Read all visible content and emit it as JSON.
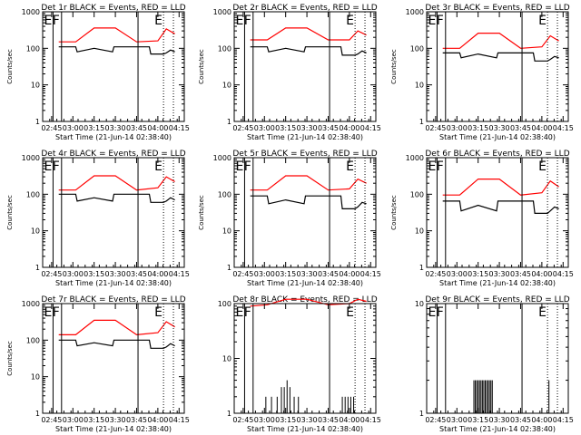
{
  "chart_data": [
    {
      "type": "line",
      "title": "Det 1r BLACK = Events, RED = LLD",
      "xlabel": "Start Time (21-Jun-14 02:38:40)",
      "ylabel": "Counts/sec",
      "yscale": "log",
      "ylim": [
        1,
        1000
      ],
      "xticks": [
        "02:45",
        "03:00",
        "03:15",
        "03:30",
        "03:45",
        "04:00",
        "04:15"
      ],
      "markers": [
        {
          "time": "02:46",
          "label": "E",
          "style": "solid"
        },
        {
          "time": "02:52",
          "label": "F",
          "style": "solid"
        },
        {
          "time": "03:46",
          "label": "",
          "style": "solid"
        },
        {
          "time": "04:04",
          "label": "E",
          "style": "dotted"
        },
        {
          "time": "04:11",
          "label": "",
          "style": "dotted"
        }
      ],
      "series": [
        {
          "color": "#ff0000",
          "x": [
            "02:50",
            "03:02",
            "03:15",
            "03:30",
            "03:45",
            "04:00",
            "04:06",
            "04:12"
          ],
          "values": [
            150,
            150,
            360,
            360,
            150,
            160,
            340,
            250
          ]
        },
        {
          "color": "#000000",
          "x": [
            "02:50",
            "03:02",
            "03:03",
            "03:15",
            "03:28",
            "03:29",
            "03:44",
            "03:54",
            "03:55",
            "04:04",
            "04:06",
            "04:09",
            "04:12"
          ],
          "values": [
            110,
            110,
            80,
            100,
            80,
            110,
            110,
            110,
            70,
            70,
            75,
            90,
            80
          ]
        }
      ]
    },
    {
      "type": "line",
      "title": "Det 2r BLACK = Events, RED = LLD",
      "xlabel": "Start Time (21-Jun-14 02:38:40)",
      "ylabel": "Counts/sec",
      "yscale": "log",
      "ylim": [
        1,
        1000
      ],
      "xticks": [
        "02:45",
        "03:00",
        "03:15",
        "03:30",
        "03:45",
        "04:00",
        "04:15"
      ],
      "markers": [
        {
          "time": "02:46",
          "label": "E",
          "style": "solid"
        },
        {
          "time": "02:52",
          "label": "F",
          "style": "solid"
        },
        {
          "time": "03:46",
          "label": "",
          "style": "solid"
        },
        {
          "time": "04:04",
          "label": "E",
          "style": "dotted"
        },
        {
          "time": "04:11",
          "label": "",
          "style": "dotted"
        }
      ],
      "series": [
        {
          "color": "#ff0000",
          "x": [
            "02:50",
            "03:02",
            "03:15",
            "03:30",
            "03:45",
            "04:00",
            "04:06",
            "04:12"
          ],
          "values": [
            170,
            170,
            360,
            360,
            170,
            170,
            300,
            230
          ]
        },
        {
          "color": "#000000",
          "x": [
            "02:50",
            "03:02",
            "03:03",
            "03:15",
            "03:28",
            "03:29",
            "03:44",
            "03:54",
            "03:55",
            "04:04",
            "04:06",
            "04:09",
            "04:12"
          ],
          "values": [
            110,
            110,
            80,
            100,
            80,
            110,
            110,
            110,
            65,
            65,
            70,
            85,
            75
          ]
        }
      ]
    },
    {
      "type": "line",
      "title": "Det 3r BLACK = Events, RED = LLD",
      "xlabel": "Start Time (21-Jun-14 02:38:40)",
      "ylabel": "Counts/sec",
      "yscale": "log",
      "ylim": [
        1,
        1000
      ],
      "xticks": [
        "02:45",
        "03:00",
        "03:15",
        "03:30",
        "03:45",
        "04:00",
        "04:15"
      ],
      "markers": [
        {
          "time": "02:46",
          "label": "E",
          "style": "solid"
        },
        {
          "time": "02:52",
          "label": "F",
          "style": "solid"
        },
        {
          "time": "03:46",
          "label": "",
          "style": "solid"
        },
        {
          "time": "04:04",
          "label": "E",
          "style": "dotted"
        },
        {
          "time": "04:11",
          "label": "",
          "style": "dotted"
        }
      ],
      "series": [
        {
          "color": "#ff0000",
          "x": [
            "02:50",
            "03:02",
            "03:15",
            "03:30",
            "03:45",
            "04:00",
            "04:06",
            "04:12"
          ],
          "values": [
            100,
            100,
            260,
            260,
            100,
            110,
            220,
            160
          ]
        },
        {
          "color": "#000000",
          "x": [
            "02:50",
            "03:02",
            "03:03",
            "03:15",
            "03:28",
            "03:29",
            "03:44",
            "03:54",
            "03:55",
            "04:04",
            "04:06",
            "04:09",
            "04:12"
          ],
          "values": [
            75,
            75,
            55,
            70,
            55,
            75,
            75,
            75,
            45,
            45,
            50,
            60,
            55
          ]
        }
      ]
    },
    {
      "type": "line",
      "title": "Det 4r BLACK = Events, RED = LLD",
      "xlabel": "Start Time (21-Jun-14 02:38:40)",
      "ylabel": "Counts/sec",
      "yscale": "log",
      "ylim": [
        1,
        1000
      ],
      "xticks": [
        "02:45",
        "03:00",
        "03:15",
        "03:30",
        "03:45",
        "04:00",
        "04:15"
      ],
      "markers": [
        {
          "time": "02:46",
          "label": "E",
          "style": "solid"
        },
        {
          "time": "02:52",
          "label": "F",
          "style": "solid"
        },
        {
          "time": "03:46",
          "label": "",
          "style": "solid"
        },
        {
          "time": "04:04",
          "label": "E",
          "style": "dotted"
        },
        {
          "time": "04:11",
          "label": "",
          "style": "dotted"
        }
      ],
      "series": [
        {
          "color": "#ff0000",
          "x": [
            "02:50",
            "03:02",
            "03:15",
            "03:30",
            "03:45",
            "04:00",
            "04:06",
            "04:12"
          ],
          "values": [
            130,
            130,
            320,
            320,
            130,
            150,
            300,
            220
          ]
        },
        {
          "color": "#000000",
          "x": [
            "02:50",
            "03:02",
            "03:03",
            "03:15",
            "03:28",
            "03:29",
            "03:44",
            "03:54",
            "03:55",
            "04:04",
            "04:06",
            "04:09",
            "04:12"
          ],
          "values": [
            100,
            100,
            65,
            80,
            65,
            100,
            100,
            100,
            60,
            60,
            65,
            80,
            70
          ]
        }
      ]
    },
    {
      "type": "line",
      "title": "Det 5r BLACK = Events, RED = LLD",
      "xlabel": "Start Time (21-Jun-14 02:38:40)",
      "ylabel": "Counts/sec",
      "yscale": "log",
      "ylim": [
        1,
        1000
      ],
      "xticks": [
        "02:45",
        "03:00",
        "03:15",
        "03:30",
        "03:45",
        "04:00",
        "04:15"
      ],
      "markers": [
        {
          "time": "02:46",
          "label": "E",
          "style": "solid"
        },
        {
          "time": "02:52",
          "label": "F",
          "style": "solid"
        },
        {
          "time": "03:46",
          "label": "",
          "style": "solid"
        },
        {
          "time": "04:04",
          "label": "E",
          "style": "dotted"
        },
        {
          "time": "04:11",
          "label": "",
          "style": "dotted"
        }
      ],
      "series": [
        {
          "color": "#ff0000",
          "x": [
            "02:50",
            "03:02",
            "03:15",
            "03:30",
            "03:45",
            "04:00",
            "04:06",
            "04:12"
          ],
          "values": [
            130,
            130,
            320,
            320,
            130,
            140,
            260,
            200
          ]
        },
        {
          "color": "#000000",
          "x": [
            "02:50",
            "03:02",
            "03:03",
            "03:15",
            "03:28",
            "03:29",
            "03:44",
            "03:54",
            "03:55",
            "04:04",
            "04:06",
            "04:09",
            "04:12"
          ],
          "values": [
            90,
            90,
            55,
            70,
            55,
            90,
            90,
            90,
            40,
            40,
            45,
            60,
            55
          ]
        }
      ]
    },
    {
      "type": "line",
      "title": "Det 6r BLACK = Events, RED = LLD",
      "xlabel": "Start Time (21-Jun-14 02:38:40)",
      "ylabel": "Counts/sec",
      "yscale": "log",
      "ylim": [
        1,
        1000
      ],
      "xticks": [
        "02:45",
        "03:00",
        "03:15",
        "03:30",
        "03:45",
        "04:00",
        "04:15"
      ],
      "markers": [
        {
          "time": "02:46",
          "label": "E",
          "style": "solid"
        },
        {
          "time": "02:52",
          "label": "F",
          "style": "solid"
        },
        {
          "time": "03:46",
          "label": "",
          "style": "solid"
        },
        {
          "time": "04:04",
          "label": "E",
          "style": "dotted"
        },
        {
          "time": "04:11",
          "label": "",
          "style": "dotted"
        }
      ],
      "series": [
        {
          "color": "#ff0000",
          "x": [
            "02:50",
            "03:02",
            "03:15",
            "03:30",
            "03:45",
            "04:00",
            "04:06",
            "04:12"
          ],
          "values": [
            95,
            95,
            260,
            260,
            95,
            110,
            230,
            160
          ]
        },
        {
          "color": "#000000",
          "x": [
            "02:50",
            "03:02",
            "03:03",
            "03:15",
            "03:28",
            "03:29",
            "03:44",
            "03:54",
            "03:55",
            "04:04",
            "04:06",
            "04:09",
            "04:12"
          ],
          "values": [
            65,
            65,
            35,
            50,
            35,
            65,
            65,
            65,
            30,
            30,
            35,
            45,
            40
          ]
        }
      ]
    },
    {
      "type": "line",
      "title": "Det 7r BLACK = Events, RED = LLD",
      "xlabel": "Start Time (21-Jun-14 02:38:40)",
      "ylabel": "Counts/sec",
      "yscale": "log",
      "ylim": [
        1,
        1000
      ],
      "xticks": [
        "02:45",
        "03:00",
        "03:15",
        "03:30",
        "03:45",
        "04:00",
        "04:15"
      ],
      "markers": [
        {
          "time": "02:46",
          "label": "E",
          "style": "solid"
        },
        {
          "time": "02:52",
          "label": "F",
          "style": "solid"
        },
        {
          "time": "03:46",
          "label": "",
          "style": "solid"
        },
        {
          "time": "04:04",
          "label": "E",
          "style": "dotted"
        },
        {
          "time": "04:11",
          "label": "",
          "style": "dotted"
        }
      ],
      "series": [
        {
          "color": "#ff0000",
          "x": [
            "02:50",
            "03:02",
            "03:15",
            "03:30",
            "03:45",
            "04:00",
            "04:06",
            "04:12"
          ],
          "values": [
            140,
            140,
            350,
            350,
            140,
            160,
            320,
            230
          ]
        },
        {
          "color": "#000000",
          "x": [
            "02:50",
            "03:02",
            "03:03",
            "03:15",
            "03:28",
            "03:29",
            "03:44",
            "03:54",
            "03:55",
            "04:04",
            "04:06",
            "04:09",
            "04:12"
          ],
          "values": [
            100,
            100,
            70,
            85,
            70,
            100,
            100,
            100,
            60,
            60,
            65,
            80,
            70
          ]
        }
      ]
    },
    {
      "type": "line",
      "title": "Det 8r BLACK = Events, RED = LLD",
      "xlabel": "Start Time (21-Jun-14 02:38:40)",
      "ylabel": "",
      "yscale": "log",
      "ylim": [
        1,
        100
      ],
      "xticks": [
        "02:45",
        "03:00",
        "03:15",
        "03:30",
        "03:45",
        "04:00",
        "04:15"
      ],
      "markers": [
        {
          "time": "02:46",
          "label": "E",
          "style": "solid"
        },
        {
          "time": "02:52",
          "label": "F",
          "style": "solid"
        },
        {
          "time": "03:46",
          "label": "",
          "style": "solid"
        },
        {
          "time": "04:04",
          "label": "E",
          "style": "dotted"
        },
        {
          "time": "04:11",
          "label": "",
          "style": "dotted"
        }
      ],
      "series": [
        {
          "color": "#ff0000",
          "x": [
            "02:50",
            "03:02",
            "03:15",
            "03:30",
            "03:45",
            "04:00",
            "04:06",
            "04:12"
          ],
          "values": [
            90,
            95,
            120,
            120,
            95,
            100,
            120,
            110
          ]
        },
        {
          "color": "#000000",
          "style": "spikes",
          "x": [
            "03:01",
            "03:05",
            "03:09",
            "03:12",
            "03:14",
            "03:16",
            "03:18",
            "03:21",
            "03:24",
            "03:55",
            "03:57",
            "03:59",
            "04:01",
            "04:03"
          ],
          "values": [
            2,
            2,
            2,
            3,
            3,
            4,
            3,
            2,
            2,
            2,
            2,
            2,
            2,
            2
          ]
        }
      ]
    },
    {
      "type": "line",
      "title": "Det 9r BLACK = Events, RED = LLD",
      "xlabel": "Start Time (21-Jun-14 02:38:40)",
      "ylabel": "",
      "yscale": "log",
      "ylim": [
        1,
        10
      ],
      "xticks": [
        "02:45",
        "03:00",
        "03:15",
        "03:30",
        "03:45",
        "04:00",
        "04:15"
      ],
      "markers": [
        {
          "time": "02:46",
          "label": "E",
          "style": "solid"
        },
        {
          "time": "02:52",
          "label": "F",
          "style": "solid"
        },
        {
          "time": "03:46",
          "label": "",
          "style": "solid"
        },
        {
          "time": "04:04",
          "label": "E",
          "style": "dotted"
        },
        {
          "time": "04:11",
          "label": "",
          "style": "dotted"
        }
      ],
      "series": [
        {
          "color": "#000000",
          "style": "spikes",
          "x": [
            "03:12",
            "03:13",
            "03:14",
            "03:15",
            "03:16",
            "03:17",
            "03:18",
            "03:19",
            "03:20",
            "03:21",
            "03:22",
            "03:23",
            "03:24",
            "03:25",
            "04:05"
          ],
          "values": [
            2,
            2,
            2,
            2,
            2,
            2,
            2,
            2,
            2,
            2,
            2,
            2,
            2,
            2,
            2
          ]
        }
      ]
    }
  ]
}
